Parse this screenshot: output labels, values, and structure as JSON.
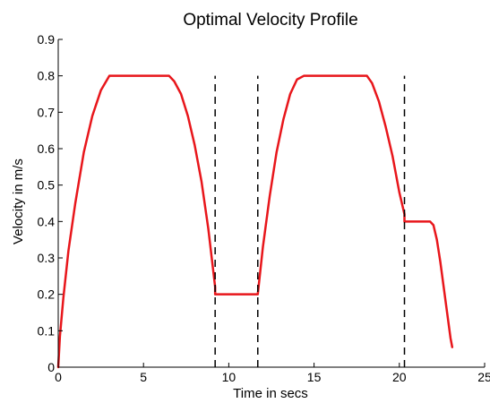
{
  "chart_data": {
    "type": "line",
    "title": "Optimal Velocity Profile",
    "xlabel": "Time in secs",
    "ylabel": "Velocity in m/s",
    "xlim": [
      0,
      25
    ],
    "ylim": [
      0,
      0.9
    ],
    "xticks": [
      0,
      5,
      10,
      15,
      20,
      25
    ],
    "xtick_labels": [
      "0",
      "5",
      "10",
      "15",
      "20",
      "25"
    ],
    "yticks": [
      0,
      0.1,
      0.2,
      0.3,
      0.4,
      0.5,
      0.6,
      0.7,
      0.8,
      0.9
    ],
    "ytick_labels": [
      "0",
      "0.1",
      "0.2",
      "0.3",
      "0.4",
      "0.5",
      "0.6",
      "0.7",
      "0.8",
      "0.9"
    ],
    "grid": false,
    "legend": "none",
    "series": [
      {
        "color": "#e8161b",
        "style": "solid",
        "x": [
          0,
          0.1,
          0.3,
          0.6,
          1.0,
          1.5,
          2.0,
          2.5,
          3.0,
          3.2,
          6.5,
          6.8,
          7.2,
          7.6,
          8.0,
          8.4,
          8.8,
          9.2,
          9.2,
          11.7,
          11.7,
          12.0,
          12.4,
          12.8,
          13.2,
          13.6,
          14.0,
          14.4,
          18.1,
          18.4,
          18.8,
          19.2,
          19.6,
          20.0,
          20.3,
          20.3,
          21.8,
          22.0,
          22.2,
          22.4,
          22.6,
          22.8,
          23.0,
          23.1
        ],
        "y": [
          0,
          0.085,
          0.19,
          0.32,
          0.45,
          0.59,
          0.69,
          0.76,
          0.8,
          0.8,
          0.8,
          0.785,
          0.75,
          0.69,
          0.61,
          0.51,
          0.38,
          0.22,
          0.2,
          0.2,
          0.2,
          0.33,
          0.47,
          0.59,
          0.68,
          0.75,
          0.79,
          0.8,
          0.8,
          0.78,
          0.73,
          0.66,
          0.58,
          0.48,
          0.42,
          0.4,
          0.4,
          0.39,
          0.35,
          0.29,
          0.22,
          0.15,
          0.08,
          0.055
        ]
      },
      {
        "color": "#000000",
        "style": "dashed",
        "x": [
          9.2,
          9.2
        ],
        "y": [
          0,
          0.8
        ]
      },
      {
        "color": "#000000",
        "style": "dashed",
        "x": [
          11.7,
          11.7
        ],
        "y": [
          0,
          0.8
        ]
      },
      {
        "color": "#000000",
        "style": "dashed",
        "x": [
          20.3,
          20.3
        ],
        "y": [
          0,
          0.8
        ]
      }
    ]
  }
}
